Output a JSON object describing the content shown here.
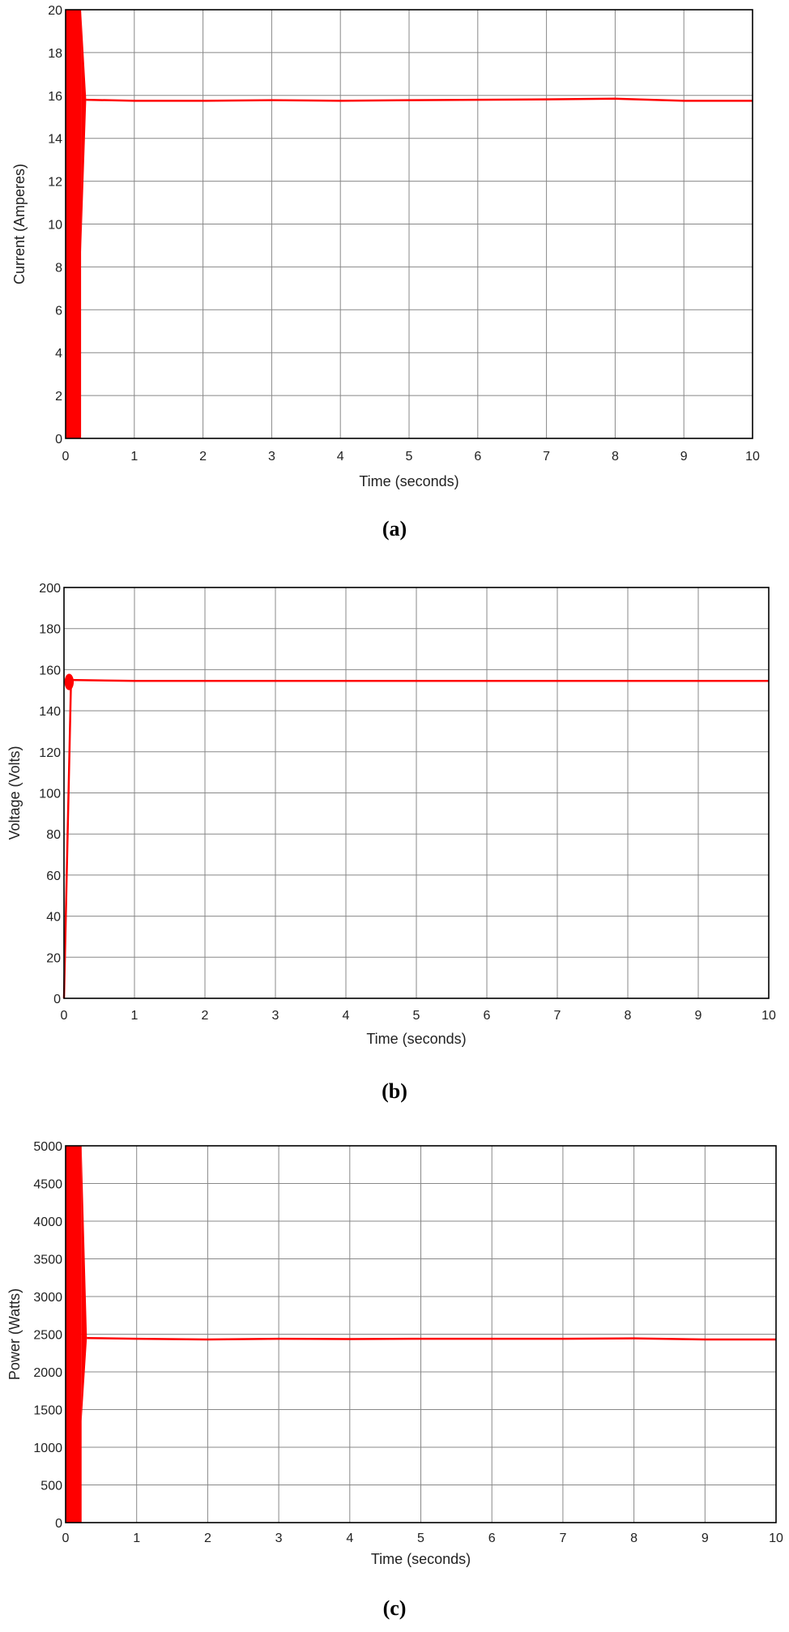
{
  "colors": {
    "trace": "#ff0000",
    "grid": "#888888",
    "axes": "#000000"
  },
  "chart_data": [
    {
      "id": "a",
      "type": "line",
      "caption": "(a)",
      "title": "",
      "xlabel": "Time (seconds)",
      "ylabel": "Current (Amperes)",
      "xlim": [
        0,
        10
      ],
      "ylim": [
        0,
        20
      ],
      "xticks": [
        "0",
        "1",
        "2",
        "3",
        "4",
        "5",
        "6",
        "7",
        "8",
        "9",
        "10"
      ],
      "yticks": [
        "0",
        "2",
        "4",
        "6",
        "8",
        "10",
        "12",
        "14",
        "16",
        "18",
        "20"
      ],
      "grid": true,
      "series": [
        {
          "name": "Current",
          "color": "#ff0000",
          "transient": {
            "t_end": 0.3,
            "min": 0,
            "max": 20,
            "description": "heavy oscillation saturating full axis range before settling"
          },
          "x": [
            0.3,
            1,
            2,
            3,
            4,
            5,
            6,
            7,
            8,
            9,
            10
          ],
          "values": [
            15.8,
            15.75,
            15.75,
            15.78,
            15.75,
            15.78,
            15.8,
            15.82,
            15.85,
            15.75,
            15.75
          ]
        }
      ]
    },
    {
      "id": "b",
      "type": "line",
      "caption": "(b)",
      "title": "",
      "xlabel": "Time (seconds)",
      "ylabel": "Voltage (Volts)",
      "xlim": [
        0,
        10
      ],
      "ylim": [
        0,
        200
      ],
      "xticks": [
        "0",
        "1",
        "2",
        "3",
        "4",
        "5",
        "6",
        "7",
        "8",
        "9",
        "10"
      ],
      "yticks": [
        "0",
        "20",
        "40",
        "60",
        "80",
        "100",
        "120",
        "140",
        "160",
        "180",
        "200"
      ],
      "grid": true,
      "series": [
        {
          "name": "Voltage",
          "color": "#ff0000",
          "transient": {
            "t_end": 0.1,
            "min": 150,
            "max": 158,
            "description": "vertical rise from 0 at t=0 with small ripple blob near 155 V"
          },
          "x": [
            0,
            0.1,
            1,
            2,
            3,
            4,
            5,
            6,
            7,
            8,
            9,
            10
          ],
          "values": [
            0,
            155,
            154.5,
            154.5,
            154.5,
            154.5,
            154.5,
            154.5,
            154.5,
            154.5,
            154.5,
            154.5
          ]
        }
      ]
    },
    {
      "id": "c",
      "type": "line",
      "caption": "(c)",
      "title": "",
      "xlabel": "Time (seconds)",
      "ylabel": "Power (Watts)",
      "xlim": [
        0,
        10
      ],
      "ylim": [
        0,
        5000
      ],
      "xticks": [
        "0",
        "1",
        "2",
        "3",
        "4",
        "5",
        "6",
        "7",
        "8",
        "9",
        "10"
      ],
      "yticks": [
        "0",
        "500",
        "1000",
        "1500",
        "2000",
        "2500",
        "3000",
        "3500",
        "4000",
        "4500",
        "5000"
      ],
      "grid": true,
      "series": [
        {
          "name": "Power",
          "color": "#ff0000",
          "transient": {
            "t_end": 0.3,
            "min": 0,
            "max": 5000,
            "description": "heavy oscillation saturating full axis range before settling"
          },
          "x": [
            0.3,
            1,
            2,
            3,
            4,
            5,
            6,
            7,
            8,
            9,
            10
          ],
          "values": [
            2450,
            2440,
            2430,
            2440,
            2435,
            2440,
            2440,
            2440,
            2445,
            2430,
            2430
          ]
        }
      ]
    }
  ]
}
